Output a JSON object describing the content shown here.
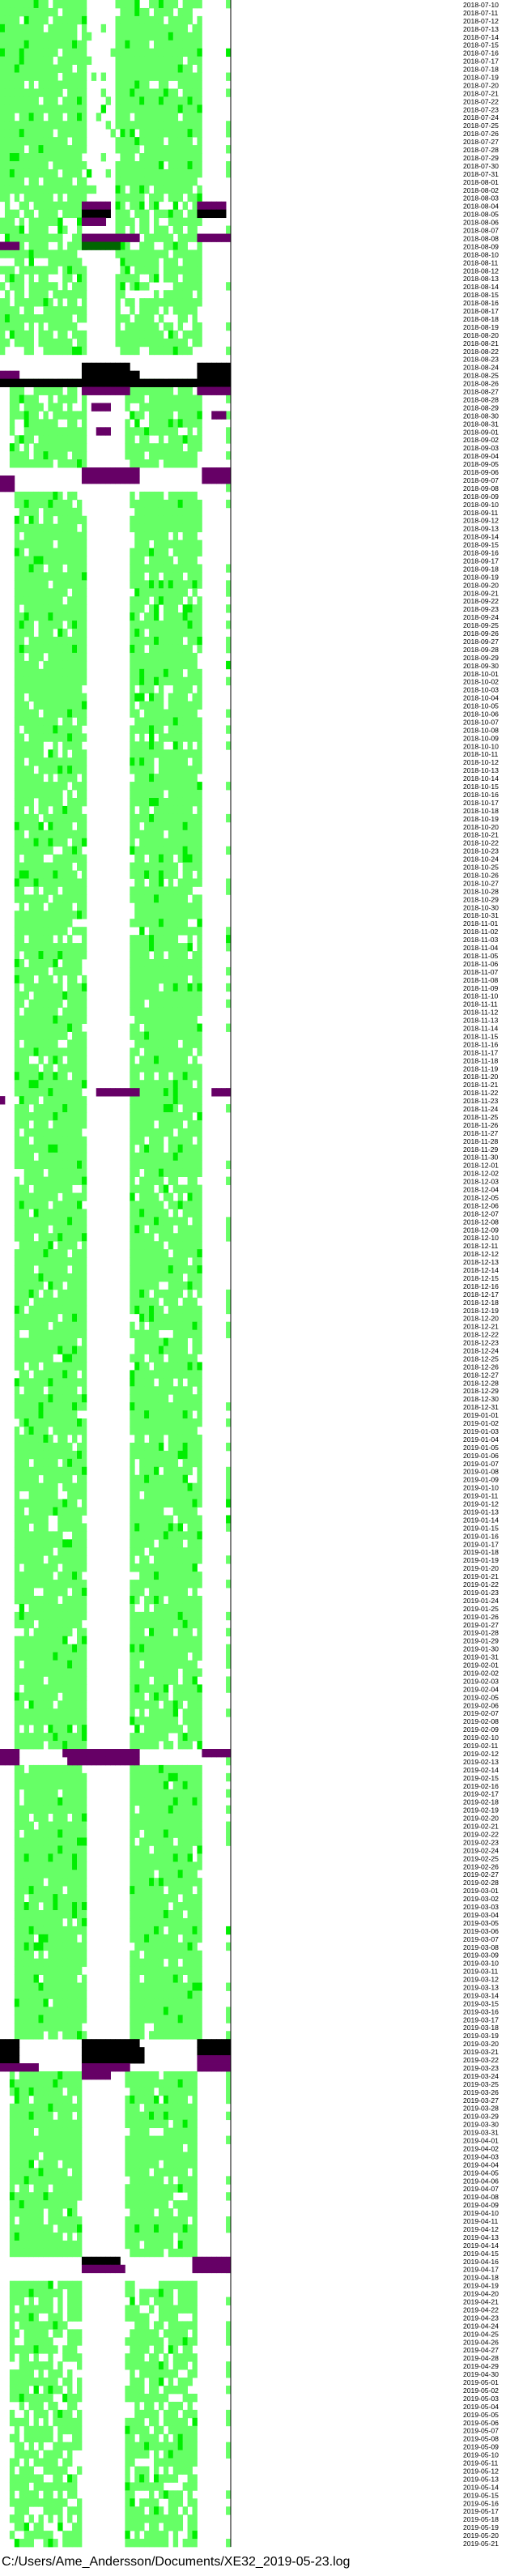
{
  "file_path": "C:/Users/Ame_Andersson/Documents/XE32_2019-05-23.log",
  "colors": {
    "light_green": "#66ff66",
    "bright_green": "#00ee00",
    "dark_green": "#006600",
    "purple": "#660066",
    "black": "#000000",
    "white": "#ffffff"
  },
  "chart_data": {
    "type": "heatmap",
    "title": "",
    "xlabel": "",
    "ylabel": "",
    "grid": false,
    "legend": "none",
    "y_tick_labels": [
      "2018-07-10",
      "2018-07-11",
      "2018-07-12",
      "2018-07-13",
      "2018-07-14",
      "2018-07-15",
      "2018-07-16",
      "2018-07-17",
      "2018-07-18",
      "2018-07-19",
      "2018-07-20",
      "2018-07-21",
      "2018-07-22",
      "2018-07-23",
      "2018-07-24",
      "2018-07-25",
      "2018-07-26",
      "2018-07-27",
      "2018-07-28",
      "2018-07-29",
      "2018-07-30",
      "2018-07-31",
      "2018-08-01",
      "2018-08-02",
      "2018-08-03",
      "2018-08-04",
      "2018-08-05",
      "2018-08-06",
      "2018-08-07",
      "2018-08-08",
      "2018-08-09",
      "2018-08-10",
      "2018-08-11",
      "2018-08-12",
      "2018-08-13",
      "2018-08-14",
      "2018-08-15",
      "2018-08-16",
      "2018-08-17",
      "2018-08-18",
      "2018-08-19",
      "2018-08-20",
      "2018-08-21",
      "2018-08-22",
      "2018-08-23",
      "2018-08-24",
      "2018-08-25",
      "2018-08-26",
      "2018-08-27",
      "2018-08-28",
      "2018-08-29",
      "2018-08-30",
      "2018-08-31",
      "2018-09-01",
      "2018-09-02",
      "2018-09-03",
      "2018-09-04",
      "2018-09-05",
      "2018-09-06",
      "2018-09-07",
      "2018-09-08",
      "2018-09-09",
      "2018-09-10",
      "2018-09-11",
      "2018-09-12",
      "2018-09-13",
      "2018-09-14",
      "2018-09-15",
      "2018-09-16",
      "2018-09-17",
      "2018-09-18",
      "2018-09-19",
      "2018-09-20",
      "2018-09-21",
      "2018-09-22",
      "2018-09-23",
      "2018-09-24",
      "2018-09-25",
      "2018-09-26",
      "2018-09-27",
      "2018-09-28",
      "2018-09-29",
      "2018-09-30",
      "2018-10-01",
      "2018-10-02",
      "2018-10-03",
      "2018-10-04",
      "2018-10-05",
      "2018-10-06",
      "2018-10-07",
      "2018-10-08",
      "2018-10-09",
      "2018-10-10",
      "2018-10-11",
      "2018-10-12",
      "2018-10-13",
      "2018-10-14",
      "2018-10-15",
      "2018-10-16",
      "2018-10-17",
      "2018-10-18",
      "2018-10-19",
      "2018-10-20",
      "2018-10-21",
      "2018-10-22",
      "2018-10-23",
      "2018-10-24",
      "2018-10-25",
      "2018-10-26",
      "2018-10-27",
      "2018-10-28",
      "2018-10-29",
      "2018-10-30",
      "2018-10-31",
      "2018-11-01",
      "2018-11-02",
      "2018-11-03",
      "2018-11-04",
      "2018-11-05",
      "2018-11-06",
      "2018-11-07",
      "2018-11-08",
      "2018-11-09",
      "2018-11-10",
      "2018-11-11",
      "2018-11-12",
      "2018-11-13",
      "2018-11-14",
      "2018-11-15",
      "2018-11-16",
      "2018-11-17",
      "2018-11-18",
      "2018-11-19",
      "2018-11-20",
      "2018-11-21",
      "2018-11-22",
      "2018-11-23",
      "2018-11-24",
      "2018-11-25",
      "2018-11-26",
      "2018-11-27",
      "2018-11-28",
      "2018-11-29",
      "2018-11-30",
      "2018-12-01",
      "2018-12-02",
      "2018-12-03",
      "2018-12-04",
      "2018-12-05",
      "2018-12-06",
      "2018-12-07",
      "2018-12-08",
      "2018-12-09",
      "2018-12-10",
      "2018-12-11",
      "2018-12-12",
      "2018-12-13",
      "2018-12-14",
      "2018-12-15",
      "2018-12-16",
      "2018-12-17",
      "2018-12-18",
      "2018-12-19",
      "2018-12-20",
      "2018-12-21",
      "2018-12-22",
      "2018-12-23",
      "2018-12-24",
      "2018-12-25",
      "2018-12-26",
      "2018-12-27",
      "2018-12-28",
      "2018-12-29",
      "2018-12-30",
      "2018-12-31",
      "2019-01-01",
      "2019-01-02",
      "2019-01-03",
      "2019-01-04",
      "2019-01-05",
      "2019-01-06",
      "2019-01-07",
      "2019-01-08",
      "2019-01-09",
      "2019-01-10",
      "2019-01-11",
      "2019-01-12",
      "2019-01-13",
      "2019-01-14",
      "2019-01-15",
      "2019-01-16",
      "2019-01-17",
      "2019-01-18",
      "2019-01-19",
      "2019-01-20",
      "2019-01-21",
      "2019-01-22",
      "2019-01-23",
      "2019-01-24",
      "2019-01-25",
      "2019-01-26",
      "2019-01-27",
      "2019-01-28",
      "2019-01-29",
      "2019-01-30",
      "2019-01-31",
      "2019-02-01",
      "2019-02-02",
      "2019-02-03",
      "2019-02-04",
      "2019-02-05",
      "2019-02-06",
      "2019-02-07",
      "2019-02-08",
      "2019-02-09",
      "2019-02-10",
      "2019-02-11",
      "2019-02-12",
      "2019-02-13",
      "2019-02-14",
      "2019-02-15",
      "2019-02-16",
      "2019-02-17",
      "2019-02-18",
      "2019-02-19",
      "2019-02-20",
      "2019-02-21",
      "2019-02-22",
      "2019-02-23",
      "2019-02-24",
      "2019-02-25",
      "2019-02-26",
      "2019-02-27",
      "2019-02-28",
      "2019-03-01",
      "2019-03-02",
      "2019-03-03",
      "2019-03-04",
      "2019-03-05",
      "2019-03-06",
      "2019-03-07",
      "2019-03-08",
      "2019-03-09",
      "2019-03-10",
      "2019-03-11",
      "2019-03-12",
      "2019-03-13",
      "2019-03-14",
      "2019-03-15",
      "2019-03-16",
      "2019-03-17",
      "2019-03-18",
      "2019-03-19",
      "2019-03-20",
      "2019-03-21",
      "2019-03-22",
      "2019-03-23",
      "2019-03-24",
      "2019-03-25",
      "2019-03-26",
      "2019-03-27",
      "2019-03-28",
      "2019-03-29",
      "2019-03-30",
      "2019-03-31",
      "2019-04-01",
      "2019-04-02",
      "2019-04-03",
      "2019-04-04",
      "2019-04-05",
      "2019-04-06",
      "2019-04-07",
      "2019-04-08",
      "2019-04-09",
      "2019-04-10",
      "2019-04-11",
      "2019-04-12",
      "2019-04-13",
      "2019-04-14",
      "2019-04-15",
      "2019-04-16",
      "2019-04-17",
      "2019-04-18",
      "2019-04-19",
      "2019-04-20",
      "2019-04-21",
      "2019-04-22",
      "2019-04-23",
      "2019-04-24",
      "2019-04-25",
      "2019-04-26",
      "2019-04-27",
      "2019-04-28",
      "2019-04-29",
      "2019-04-30",
      "2019-05-01",
      "2019-05-02",
      "2019-05-03",
      "2019-05-04",
      "2019-05-05",
      "2019-05-06",
      "2019-05-07",
      "2019-05-08",
      "2019-05-09",
      "2019-05-10",
      "2019-05-11",
      "2019-05-12",
      "2019-05-13",
      "2019-05-14",
      "2019-05-15",
      "2019-05-16",
      "2019-05-17",
      "2019-05-18",
      "2019-05-19",
      "2019-05-20",
      "2019-05-21"
    ],
    "hour_bins_per_day": 48,
    "days_shown": 2,
    "levels": [
      "none",
      "light",
      "medium",
      "high",
      "event",
      "overload"
    ],
    "level_colors": [
      "#ffffff",
      "#66ff66",
      "#00ee00",
      "#006600",
      "#660066",
      "#000000"
    ],
    "active_segments": [
      {
        "from": "2018-07-10",
        "to": "2018-08-02",
        "bins": [
          0,
          17
        ],
        "level": "light",
        "density": 0.92
      },
      {
        "from": "2018-07-10",
        "to": "2018-08-02",
        "bins": [
          24,
          41
        ],
        "level": "light",
        "density": 0.92
      },
      {
        "from": "2018-07-10",
        "to": "2018-08-02",
        "bins": [
          18,
          23
        ],
        "level": "light",
        "density": 0.12
      },
      {
        "from": "2018-08-03",
        "to": "2018-08-22",
        "bins": [
          0,
          17
        ],
        "level": "light",
        "density": 0.78
      },
      {
        "from": "2018-08-03",
        "to": "2018-08-22",
        "bins": [
          24,
          41
        ],
        "level": "light",
        "density": 0.78
      },
      {
        "from": "2018-08-26",
        "to": "2018-09-05",
        "bins": [
          2,
          17
        ],
        "level": "light",
        "density": 0.85
      },
      {
        "from": "2018-08-26",
        "to": "2018-09-05",
        "bins": [
          26,
          41
        ],
        "level": "light",
        "density": 0.85
      },
      {
        "from": "2018-09-09",
        "to": "2019-02-11",
        "bins": [
          3,
          17
        ],
        "level": "light",
        "density": 0.9
      },
      {
        "from": "2018-09-09",
        "to": "2019-02-11",
        "bins": [
          27,
          41
        ],
        "level": "light",
        "density": 0.9
      },
      {
        "from": "2019-02-14",
        "to": "2019-03-19",
        "bins": [
          3,
          17
        ],
        "level": "light",
        "density": 0.95
      },
      {
        "from": "2019-02-14",
        "to": "2019-03-19",
        "bins": [
          27,
          41
        ],
        "level": "light",
        "density": 0.95
      },
      {
        "from": "2019-03-24",
        "to": "2019-04-15",
        "bins": [
          2,
          16
        ],
        "level": "light",
        "density": 0.93
      },
      {
        "from": "2019-03-24",
        "to": "2019-04-15",
        "bins": [
          26,
          40
        ],
        "level": "light",
        "density": 0.93
      },
      {
        "from": "2019-04-19",
        "to": "2019-05-21",
        "bins": [
          2,
          16
        ],
        "level": "light",
        "density": 0.72
      },
      {
        "from": "2019-04-19",
        "to": "2019-05-21",
        "bins": [
          26,
          40
        ],
        "level": "light",
        "density": 0.72
      },
      {
        "from": "2018-07-10",
        "to": "2019-05-21",
        "bins": [
          47,
          47
        ],
        "level": "light",
        "density": 0.35
      }
    ],
    "events": [
      {
        "date": "2018-08-04",
        "bins": [
          17,
          22
        ],
        "level": "event"
      },
      {
        "date": "2018-08-04",
        "bins": [
          41,
          46
        ],
        "level": "event"
      },
      {
        "date": "2018-08-05",
        "bins": [
          17,
          22
        ],
        "level": "overload"
      },
      {
        "date": "2018-08-05",
        "bins": [
          41,
          46
        ],
        "level": "overload"
      },
      {
        "date": "2018-08-06",
        "bins": [
          17,
          21
        ],
        "level": "event"
      },
      {
        "date": "2018-08-08",
        "bins": [
          17,
          28
        ],
        "level": "event"
      },
      {
        "date": "2018-08-08",
        "bins": [
          41,
          47
        ],
        "level": "event"
      },
      {
        "date": "2018-08-09",
        "bins": [
          0,
          3
        ],
        "level": "event"
      },
      {
        "date": "2018-08-09",
        "bins": [
          17,
          24
        ],
        "level": "dark"
      },
      {
        "date": "2018-08-24",
        "bins": [
          17,
          26
        ],
        "level": "overload"
      },
      {
        "date": "2018-08-24",
        "bins": [
          41,
          47
        ],
        "level": "overload"
      },
      {
        "date": "2018-08-25",
        "bins": [
          0,
          3
        ],
        "level": "event"
      },
      {
        "date": "2018-08-25",
        "bins": [
          17,
          28
        ],
        "level": "overload"
      },
      {
        "date": "2018-08-25",
        "bins": [
          41,
          47
        ],
        "level": "overload"
      },
      {
        "date": "2018-08-26",
        "bins": [
          0,
          47
        ],
        "level": "overload"
      },
      {
        "date": "2018-08-27",
        "bins": [
          17,
          26
        ],
        "level": "event"
      },
      {
        "date": "2018-08-27",
        "bins": [
          41,
          47
        ],
        "level": "event"
      },
      {
        "date": "2018-08-29",
        "bins": [
          19,
          22
        ],
        "level": "event"
      },
      {
        "date": "2018-08-30",
        "bins": [
          44,
          46
        ],
        "level": "event"
      },
      {
        "date": "2018-09-01",
        "bins": [
          20,
          22
        ],
        "level": "event"
      },
      {
        "date": "2018-09-06",
        "bins": [
          17,
          28
        ],
        "level": "event"
      },
      {
        "date": "2018-09-06",
        "bins": [
          42,
          47
        ],
        "level": "event"
      },
      {
        "date": "2018-09-07",
        "bins": [
          0,
          2
        ],
        "level": "event"
      },
      {
        "date": "2018-09-07",
        "bins": [
          17,
          28
        ],
        "level": "event"
      },
      {
        "date": "2018-09-07",
        "bins": [
          42,
          47
        ],
        "level": "event"
      },
      {
        "date": "2018-09-08",
        "bins": [
          0,
          2
        ],
        "level": "event"
      },
      {
        "date": "2018-11-22",
        "bins": [
          20,
          28
        ],
        "level": "event"
      },
      {
        "date": "2018-11-22",
        "bins": [
          44,
          47
        ],
        "level": "event"
      },
      {
        "date": "2018-11-23",
        "bins": [
          0,
          0
        ],
        "level": "event"
      },
      {
        "date": "2019-02-12",
        "bins": [
          0,
          3
        ],
        "level": "event"
      },
      {
        "date": "2019-02-12",
        "bins": [
          13,
          28
        ],
        "level": "event"
      },
      {
        "date": "2019-02-12",
        "bins": [
          42,
          47
        ],
        "level": "event"
      },
      {
        "date": "2019-02-13",
        "bins": [
          0,
          3
        ],
        "level": "event"
      },
      {
        "date": "2019-02-13",
        "bins": [
          14,
          28
        ],
        "level": "event"
      },
      {
        "date": "2019-03-20",
        "bins": [
          0,
          3
        ],
        "level": "overload"
      },
      {
        "date": "2019-03-20",
        "bins": [
          17,
          28
        ],
        "level": "overload"
      },
      {
        "date": "2019-03-20",
        "bins": [
          41,
          47
        ],
        "level": "overload"
      },
      {
        "date": "2019-03-21",
        "bins": [
          0,
          3
        ],
        "level": "overload"
      },
      {
        "date": "2019-03-21",
        "bins": [
          17,
          29
        ],
        "level": "overload"
      },
      {
        "date": "2019-03-21",
        "bins": [
          41,
          47
        ],
        "level": "overload"
      },
      {
        "date": "2019-03-22",
        "bins": [
          0,
          3
        ],
        "level": "overload"
      },
      {
        "date": "2019-03-22",
        "bins": [
          17,
          29
        ],
        "level": "overload"
      },
      {
        "date": "2019-03-22",
        "bins": [
          41,
          47
        ],
        "level": "event"
      },
      {
        "date": "2019-03-23",
        "bins": [
          0,
          7
        ],
        "level": "event"
      },
      {
        "date": "2019-03-23",
        "bins": [
          17,
          26
        ],
        "level": "event"
      },
      {
        "date": "2019-03-23",
        "bins": [
          41,
          47
        ],
        "level": "event"
      },
      {
        "date": "2019-03-24",
        "bins": [
          17,
          22
        ],
        "level": "event"
      },
      {
        "date": "2019-04-16",
        "bins": [
          17,
          24
        ],
        "level": "overload"
      },
      {
        "date": "2019-04-16",
        "bins": [
          40,
          47
        ],
        "level": "event"
      },
      {
        "date": "2019-04-17",
        "bins": [
          17,
          25
        ],
        "level": "event"
      },
      {
        "date": "2019-04-17",
        "bins": [
          40,
          47
        ],
        "level": "event"
      }
    ]
  }
}
